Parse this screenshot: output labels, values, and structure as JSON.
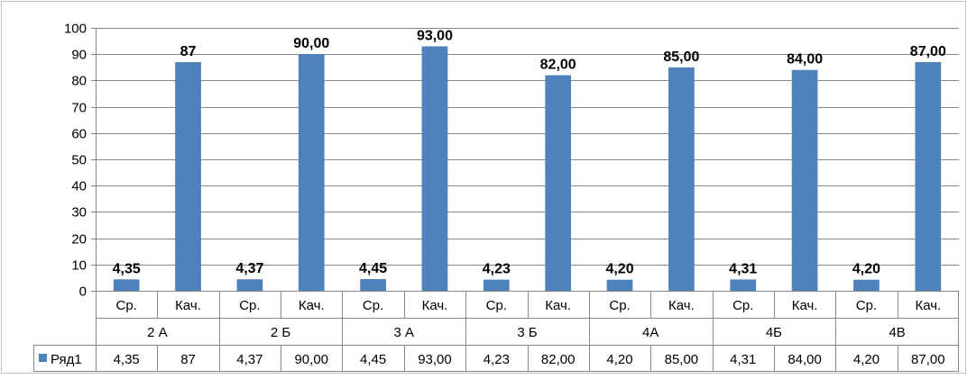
{
  "chart_data": {
    "type": "bar",
    "groups": [
      "2 А",
      "2 Б",
      "3 А",
      "3 Б",
      "4А",
      "4Б",
      "4В"
    ],
    "subcategories": [
      "Ср.",
      "Кач."
    ],
    "series": [
      {
        "name": "Ряд1",
        "values": [
          4.35,
          87,
          4.37,
          90.0,
          4.45,
          93.0,
          4.23,
          82.0,
          4.2,
          85.0,
          4.31,
          84.0,
          4.2,
          87.0
        ],
        "labels": [
          "4,35",
          "87",
          "4,37",
          "90,00",
          "4,45",
          "93,00",
          "4,23",
          "82,00",
          "4,20",
          "85,00",
          "4,31",
          "84,00",
          "4,20",
          "87,00"
        ]
      }
    ],
    "ylim": [
      0,
      100
    ],
    "yticks": [
      0,
      10,
      20,
      30,
      40,
      50,
      60,
      70,
      80,
      90,
      100
    ],
    "grid": true,
    "legend": "data-table",
    "bar_color": "#4f81bd"
  }
}
